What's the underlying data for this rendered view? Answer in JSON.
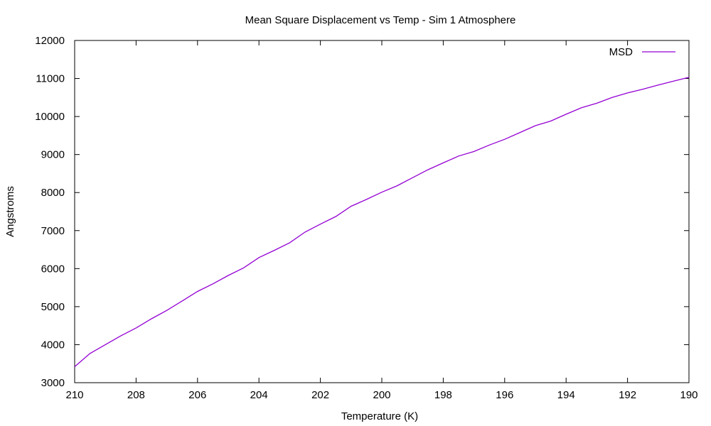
{
  "chart_data": {
    "type": "line",
    "title": "Mean Square Displacement vs Temp - Sim 1 Atmosphere",
    "xlabel": "Temperature (K)",
    "ylabel": "Angstroms",
    "xlim": [
      210,
      190
    ],
    "ylim": [
      3000,
      12000
    ],
    "x_ticks": [
      210,
      208,
      206,
      204,
      202,
      200,
      198,
      196,
      194,
      192,
      190
    ],
    "y_ticks": [
      3000,
      4000,
      5000,
      6000,
      7000,
      8000,
      9000,
      10000,
      11000,
      12000
    ],
    "grid": false,
    "legend_position": "top-right",
    "series": [
      {
        "name": "MSD",
        "color": "#9400d3",
        "x": [
          210,
          209.5,
          209,
          208.5,
          208,
          207.5,
          207,
          206.5,
          206,
          205.5,
          205,
          204.5,
          204,
          203.5,
          203,
          202.5,
          202,
          201.5,
          201,
          200.5,
          200,
          199.5,
          199,
          198.5,
          198,
          197.5,
          197,
          196.5,
          196,
          195.5,
          195,
          194.5,
          194,
          193.5,
          193,
          192.5,
          192,
          191.5,
          191,
          190.5,
          190
        ],
        "y": [
          3420,
          3770,
          4000,
          4230,
          4440,
          4680,
          4900,
          5150,
          5400,
          5600,
          5820,
          6020,
          6290,
          6480,
          6680,
          6960,
          7170,
          7370,
          7640,
          7820,
          8010,
          8180,
          8390,
          8600,
          8780,
          8960,
          9080,
          9250,
          9400,
          9580,
          9760,
          9880,
          10060,
          10230,
          10350,
          10500,
          10620,
          10720,
          10830,
          10930,
          11030
        ]
      }
    ]
  }
}
